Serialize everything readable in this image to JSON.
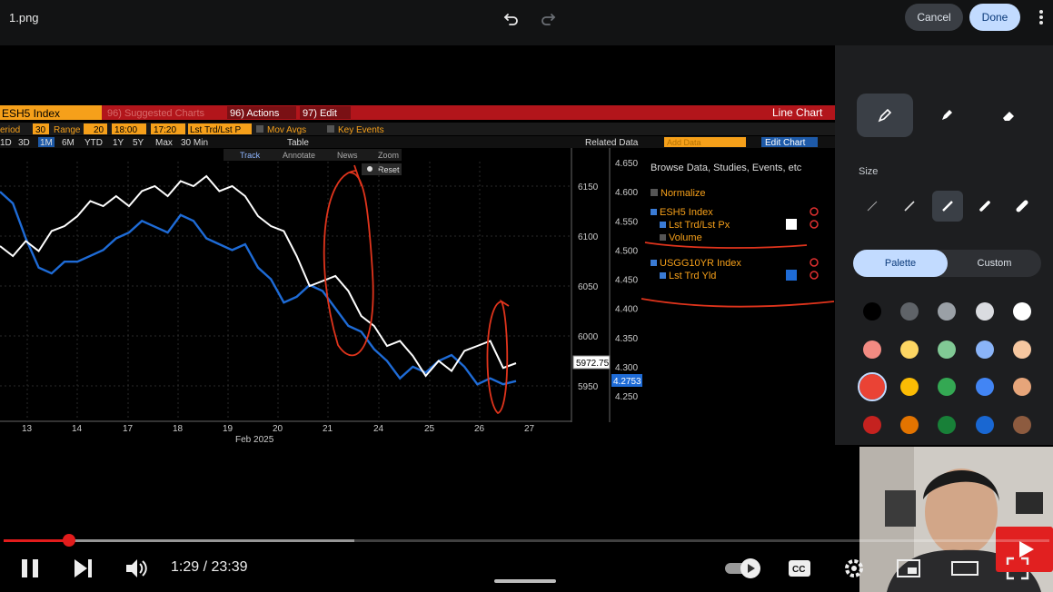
{
  "editor": {
    "file_name": "1.png",
    "cancel_label": "Cancel",
    "done_label": "Done",
    "size_label": "Size",
    "palette_label": "Palette",
    "custom_label": "Custom",
    "palette_colors": [
      "#000000",
      "#5f6368",
      "#9aa0a6",
      "#dadce0",
      "#ffffff",
      "#f28b82",
      "#fdd663",
      "#81c995",
      "#8ab4f8",
      "#f6c7a0",
      "#ea4335",
      "#fbbc04",
      "#34a853",
      "#4285f4",
      "#e6a57a",
      "#c5221f",
      "#e37400",
      "#188038",
      "#1967d2",
      "#8d5b3f"
    ],
    "selected_color": "#ea4335",
    "accent": "#c2dbff"
  },
  "terminal": {
    "ticker": "ESH5 Index",
    "suggested": "96) Suggested Charts",
    "actions": "96) Actions",
    "edit": "97) Edit",
    "chart_kind": "Line Chart",
    "period_label": "eriod",
    "period_value": "30",
    "range_label": "Range",
    "range_value": "20",
    "time_from": "18:00",
    "time_to": "17:20",
    "field": "Lst Trd/Lst P",
    "mov_avgs": "Mov Avgs",
    "key_events": "Key Events",
    "periods": [
      "1D",
      "3D",
      "1M",
      "6M",
      "YTD",
      "1Y",
      "5Y",
      "Max",
      "30 Min"
    ],
    "table": "Table",
    "related_data": "Related Data",
    "add_data": "Add Data",
    "edit_chart": "Edit Chart",
    "track": "Track",
    "annotate": "Annotate",
    "news": "News",
    "zoom": "Zoom",
    "reset": "Reset",
    "browse": "Browse Data, Studies, Events, etc",
    "normalize": "Normalize",
    "series1_index": "ESH5 Index",
    "series1_field": "Lst Trd/Lst Px",
    "series1_volume": "Volume",
    "series2_index": "USGG10YR Index",
    "series2_field": "Lst Trd Yld"
  },
  "chart_data": {
    "type": "line",
    "x_ticks": [
      "13",
      "14",
      "17",
      "18",
      "19",
      "20",
      "21",
      "24",
      "25",
      "26",
      "27"
    ],
    "x_month": "Feb 2025",
    "left_axis_ticks": [
      6150,
      6100,
      6050,
      6000,
      5950
    ],
    "right_axis_ticks": [
      4.65,
      4.6,
      4.55,
      4.5,
      4.45,
      4.4,
      4.35,
      4.3,
      4.25
    ],
    "left_axis_label": "5972.75",
    "right_axis_label": "4.2753",
    "series": [
      {
        "name": "ESH5 Index",
        "color": "#ffffff",
        "values": [
          6090,
          6080,
          6095,
          6085,
          6105,
          6110,
          6120,
          6135,
          6130,
          6140,
          6130,
          6145,
          6150,
          6140,
          6155,
          6150,
          6160,
          6145,
          6150,
          6140,
          6120,
          6110,
          6105,
          6080,
          6050,
          6055,
          6060,
          6045,
          6020,
          6010,
          5990,
          5995,
          5980,
          5960,
          5975,
          5965,
          5985,
          5990,
          5995,
          5968,
          5972.75
        ]
      },
      {
        "name": "USGG10YR Index",
        "color": "#1e6bd6",
        "values": [
          4.6,
          4.58,
          4.52,
          4.47,
          4.46,
          4.48,
          4.48,
          4.49,
          4.5,
          4.52,
          4.53,
          4.55,
          4.54,
          4.53,
          4.56,
          4.55,
          4.52,
          4.51,
          4.5,
          4.51,
          4.47,
          4.45,
          4.41,
          4.42,
          4.44,
          4.43,
          4.4,
          4.37,
          4.36,
          4.33,
          4.31,
          4.28,
          4.3,
          4.29,
          4.31,
          4.32,
          4.3,
          4.27,
          4.28,
          4.27,
          4.2753
        ]
      }
    ]
  },
  "video": {
    "time": "1:29 / 23:39",
    "progress": 0.063,
    "buffered": 0.335
  }
}
